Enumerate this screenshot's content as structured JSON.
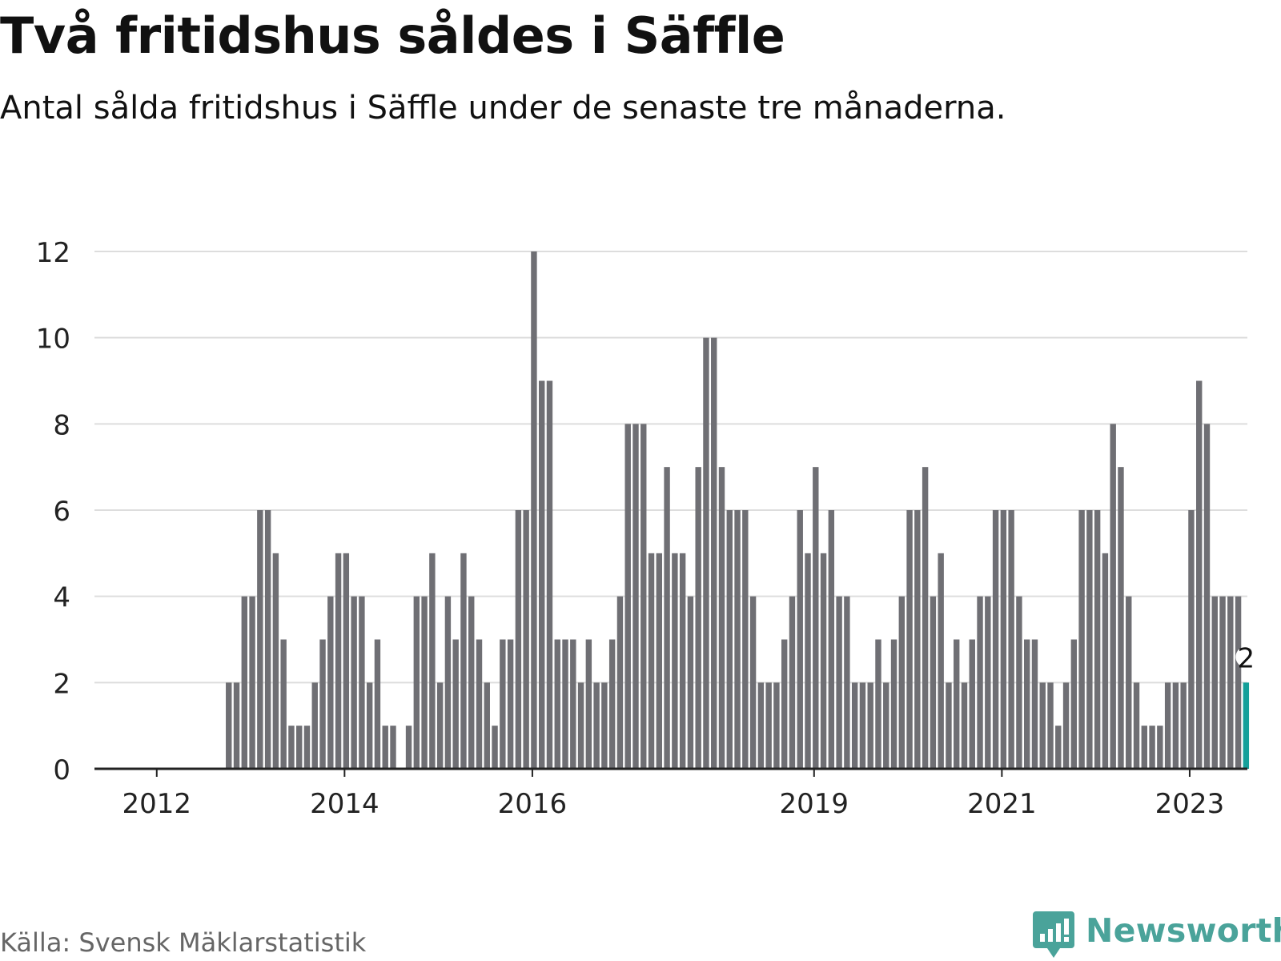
{
  "title": "Två fritidshus såldes i Säffle",
  "subtitle": "Antal sålda fritidshus i Säffle under de senaste tre månaderna.",
  "source": "Källa: Svensk Mäklarstatistik",
  "brand": "Newsworthy",
  "colors": {
    "bar": "#6f6f74",
    "highlight": "#14a09a",
    "grid": "#dddddd",
    "axis": "#222222",
    "brand": "#4aa39a"
  },
  "chart_data": {
    "type": "bar",
    "ylim": [
      0,
      12
    ],
    "yticks": [
      0,
      2,
      4,
      6,
      8,
      10,
      12
    ],
    "xticks": [
      "2012",
      "2014",
      "2016",
      "2019",
      "2021",
      "2023"
    ],
    "highlight_label": "2",
    "values": [
      0,
      0,
      0,
      0,
      0,
      0,
      0,
      0,
      0,
      0,
      2,
      2,
      4,
      4,
      6,
      6,
      5,
      3,
      1,
      1,
      1,
      2,
      3,
      4,
      5,
      5,
      4,
      4,
      2,
      3,
      1,
      1,
      0,
      1,
      4,
      4,
      5,
      2,
      4,
      3,
      5,
      4,
      3,
      2,
      1,
      3,
      3,
      6,
      6,
      12,
      9,
      9,
      3,
      3,
      3,
      2,
      3,
      2,
      2,
      3,
      4,
      8,
      8,
      8,
      5,
      5,
      7,
      5,
      5,
      4,
      7,
      10,
      10,
      7,
      6,
      6,
      6,
      4,
      2,
      2,
      2,
      3,
      4,
      6,
      5,
      7,
      5,
      6,
      4,
      4,
      2,
      2,
      2,
      3,
      2,
      3,
      4,
      6,
      6,
      7,
      4,
      5,
      2,
      3,
      2,
      3,
      4,
      4,
      6,
      6,
      6,
      4,
      3,
      3,
      2,
      2,
      1,
      2,
      3,
      6,
      6,
      6,
      5,
      8,
      7,
      4,
      2,
      1,
      1,
      1,
      2,
      2,
      2,
      6,
      9,
      8,
      4,
      4,
      4,
      4,
      2
    ]
  }
}
